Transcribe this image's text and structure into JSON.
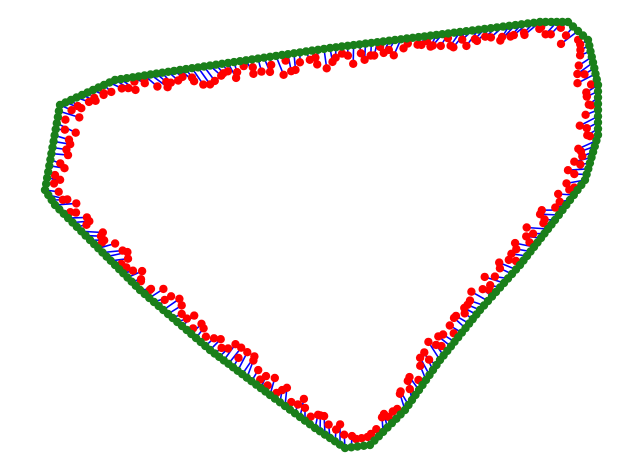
{
  "figure": {
    "background": "#ffffff",
    "colors": {
      "path_point": "#1a7f1a",
      "observation_point": "#ff0000",
      "connection_line": "#0000ff"
    },
    "description_labels": []
  }
}
